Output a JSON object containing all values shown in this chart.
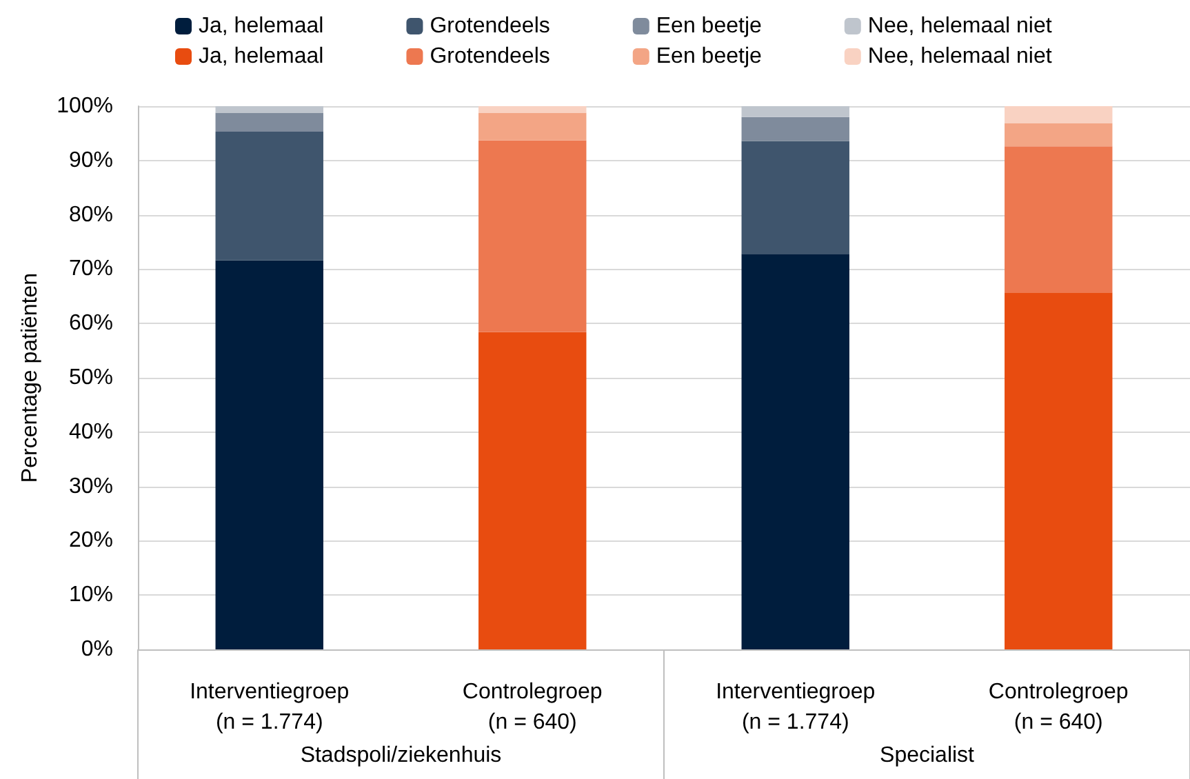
{
  "chart_data": {
    "type": "bar",
    "stacked": true,
    "ylabel": "Percentage patiënten",
    "categories": [
      "Interventiegroep\n(n = 1.774)",
      "Controlegroep\n(n = 640)",
      "Interventiegroep\n(n = 1.774)",
      "Controlegroep\n(n = 640)"
    ],
    "series": [
      {
        "name": "Ja, helemaal",
        "color": "#001d3d",
        "values": [
          71.6,
          null,
          72.8,
          null
        ]
      },
      {
        "name": "Grotendeels",
        "color": "#3f556d",
        "values": [
          23.7,
          null,
          20.8,
          null
        ]
      },
      {
        "name": "Een beetje",
        "color": "#7f8b9c",
        "values": [
          3.5,
          null,
          4.4,
          null
        ]
      },
      {
        "name": "Nee, helemaal niet",
        "color": "#bfc5cd",
        "values": [
          1.2,
          null,
          2.0,
          null
        ]
      },
      {
        "name": "Ja, helemaal",
        "color": "#e84c10",
        "values": [
          null,
          58.4,
          null,
          65.7
        ]
      },
      {
        "name": "Grotendeels",
        "color": "#ed7850",
        "values": [
          null,
          35.3,
          null,
          26.9
        ]
      },
      {
        "name": "Een beetje",
        "color": "#f3a585",
        "values": [
          null,
          5.1,
          null,
          4.3
        ]
      },
      {
        "name": "Nee, helemaal niet",
        "color": "#f9d2c2",
        "values": [
          null,
          1.2,
          null,
          3.1
        ]
      }
    ],
    "ylim": [
      0,
      100
    ],
    "yticks": [
      {
        "value": 0,
        "label": "0%"
      },
      {
        "value": 10,
        "label": "10%"
      },
      {
        "value": 20,
        "label": "20%"
      },
      {
        "value": 30,
        "label": "30%"
      },
      {
        "value": 40,
        "label": "40%"
      },
      {
        "value": 50,
        "label": "50%"
      },
      {
        "value": 60,
        "label": "60%"
      },
      {
        "value": 70,
        "label": "70%"
      },
      {
        "value": 80,
        "label": "80%"
      },
      {
        "value": 90,
        "label": "90%"
      },
      {
        "value": 100,
        "label": "100%"
      }
    ],
    "grid": "y",
    "legend": "top",
    "annotations": [
      "Stadspoli/ziekenhuis",
      "Specialist"
    ]
  }
}
